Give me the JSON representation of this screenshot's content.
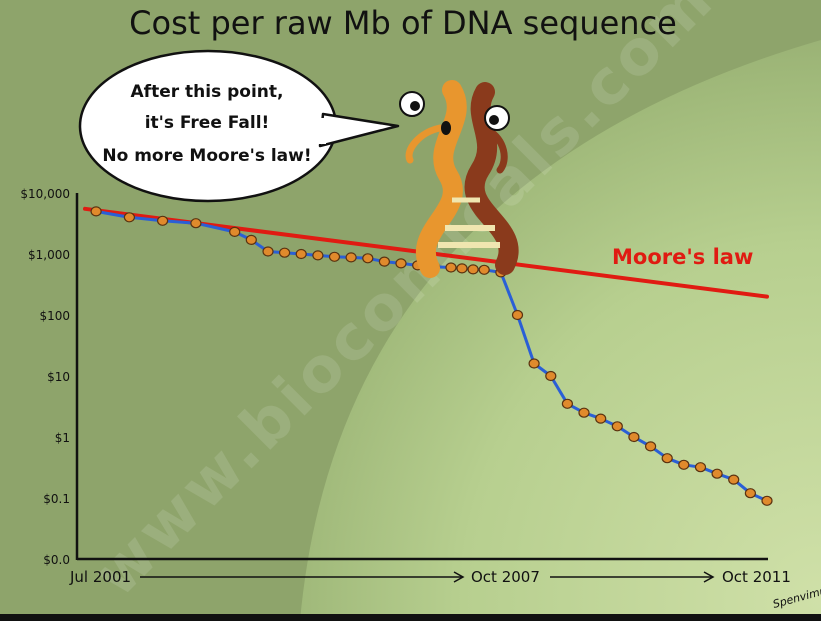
{
  "chart_data": {
    "type": "line",
    "title": "Cost per raw Mb of DNA sequence",
    "y_scale": "log",
    "ylim": [
      0.01,
      10000
    ],
    "y_ticks": [
      {
        "value": 10000,
        "label": "$10,000"
      },
      {
        "value": 1000,
        "label": "$1,000"
      },
      {
        "value": 100,
        "label": "$100"
      },
      {
        "value": 10,
        "label": "$10"
      },
      {
        "value": 1,
        "label": "$1"
      },
      {
        "value": 0.1,
        "label": "$0.1"
      },
      {
        "value": 0.01,
        "label": "$0.0"
      }
    ],
    "x_ticks": [
      {
        "value": "2001-07",
        "label": "Jul 2001"
      },
      {
        "value": "2007-10",
        "label": "Oct 2007"
      },
      {
        "value": "2011-10",
        "label": "Oct 2011"
      }
    ],
    "xlim": [
      "2001-07",
      "2011-10"
    ],
    "grid": false,
    "series": [
      {
        "name": "",
        "color": "#2a5fd6",
        "marker_color": "#e08a2c",
        "points": [
          {
            "x": "2001-09",
            "y": 5000
          },
          {
            "x": "2002-03",
            "y": 4000
          },
          {
            "x": "2002-09",
            "y": 3500
          },
          {
            "x": "2003-03",
            "y": 3200
          },
          {
            "x": "2003-10",
            "y": 2300
          },
          {
            "x": "2004-01",
            "y": 1700
          },
          {
            "x": "2004-04",
            "y": 1100
          },
          {
            "x": "2004-07",
            "y": 1050
          },
          {
            "x": "2004-10",
            "y": 1000
          },
          {
            "x": "2005-01",
            "y": 950
          },
          {
            "x": "2005-04",
            "y": 900
          },
          {
            "x": "2005-07",
            "y": 880
          },
          {
            "x": "2005-10",
            "y": 850
          },
          {
            "x": "2006-01",
            "y": 750
          },
          {
            "x": "2006-04",
            "y": 700
          },
          {
            "x": "2006-07",
            "y": 650
          },
          {
            "x": "2006-10",
            "y": 620
          },
          {
            "x": "2007-01",
            "y": 600
          },
          {
            "x": "2007-03",
            "y": 580
          },
          {
            "x": "2007-05",
            "y": 560
          },
          {
            "x": "2007-07",
            "y": 550
          },
          {
            "x": "2007-10",
            "y": 500
          },
          {
            "x": "2008-01",
            "y": 100
          },
          {
            "x": "2008-04",
            "y": 16
          },
          {
            "x": "2008-07",
            "y": 10
          },
          {
            "x": "2008-10",
            "y": 3.5
          },
          {
            "x": "2009-01",
            "y": 2.5
          },
          {
            "x": "2009-04",
            "y": 2.0
          },
          {
            "x": "2009-07",
            "y": 1.5
          },
          {
            "x": "2009-10",
            "y": 1.0
          },
          {
            "x": "2010-01",
            "y": 0.7
          },
          {
            "x": "2010-04",
            "y": 0.45
          },
          {
            "x": "2010-07",
            "y": 0.35
          },
          {
            "x": "2010-10",
            "y": 0.32
          },
          {
            "x": "2011-01",
            "y": 0.25
          },
          {
            "x": "2011-04",
            "y": 0.2
          },
          {
            "x": "2011-07",
            "y": 0.12
          },
          {
            "x": "2011-10",
            "y": 0.09
          }
        ]
      },
      {
        "name": "Moore's law",
        "color": "#e01b12",
        "points": [
          {
            "x": "2001-07",
            "y": 5500
          },
          {
            "x": "2011-10",
            "y": 200
          }
        ]
      }
    ],
    "annotations": [
      {
        "text": "After this point,"
      },
      {
        "text": "it's Free Fall!"
      },
      {
        "text": "No more Moore's law!"
      }
    ],
    "watermark": "www.biocomicals.com",
    "signature": "Spenvimu"
  }
}
